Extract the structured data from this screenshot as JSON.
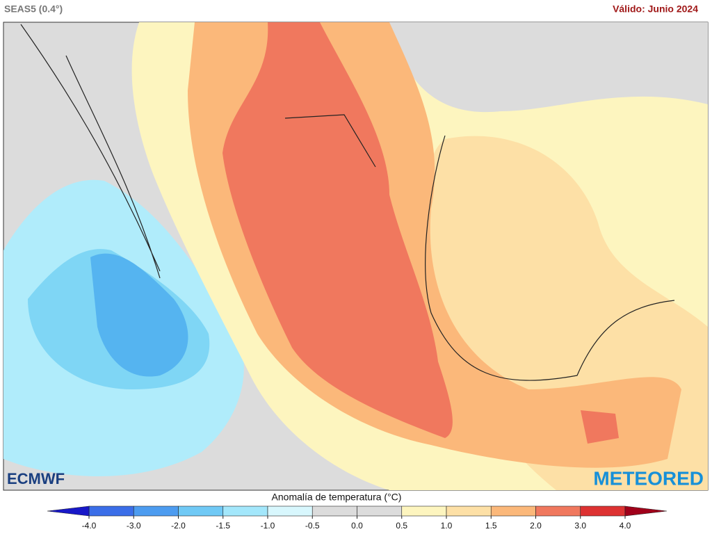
{
  "header": {
    "left": "SEAS5 (0.4°)",
    "right": "Válido: Junio 2024"
  },
  "logos": {
    "left": "ECMWF",
    "right": "METEORED"
  },
  "legend": {
    "title": "Anomalía de temperatura (°C)",
    "ticks": [
      "-4.0",
      "-3.0",
      "-2.0",
      "-1.5",
      "-1.0",
      "-0.5",
      "0.0",
      "0.5",
      "1.0",
      "1.5",
      "2.0",
      "3.0",
      "4.0"
    ],
    "colors": [
      "#3b6ee8",
      "#4d9cf0",
      "#70c9f5",
      "#a3e7fb",
      "#d8f7fd",
      "#dcdcdc",
      "#dcdcdc",
      "#fdf5bf",
      "#fde0a6",
      "#fbb87a",
      "#f0785e",
      "#dd3232"
    ],
    "low_color": "#1818c8",
    "high_color": "#a0001a"
  }
}
